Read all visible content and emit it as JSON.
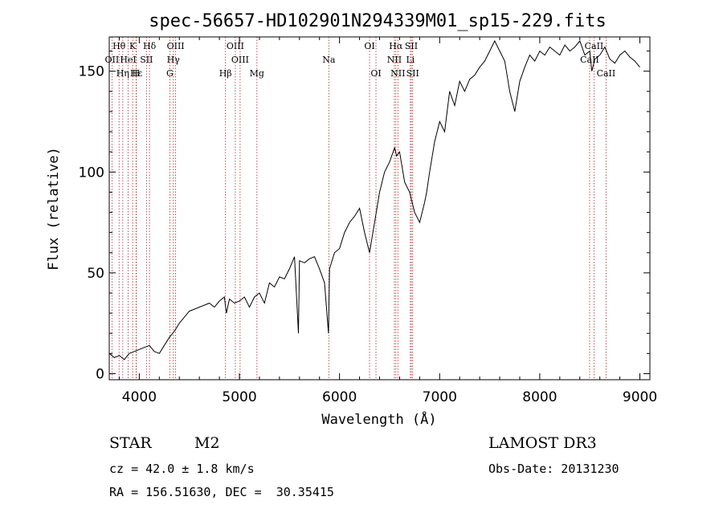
{
  "chart_data": {
    "type": "line",
    "title": "spec-56657-HD102901N294339M01_sp15-229.fits",
    "xlabel": "Wavelength (Å)",
    "ylabel": "Flux (relative)",
    "xlim": [
      3700,
      9100
    ],
    "ylim": [
      -3,
      167
    ],
    "xticks": [
      4000,
      5000,
      6000,
      7000,
      8000,
      9000
    ],
    "yticks": [
      0,
      50,
      100,
      150
    ],
    "grid": false,
    "series": [
      {
        "name": "spectrum",
        "x": [
          3700,
          3750,
          3800,
          3850,
          3900,
          3950,
          4000,
          4050,
          4100,
          4150,
          4200,
          4250,
          4300,
          4350,
          4400,
          4450,
          4500,
          4550,
          4600,
          4650,
          4700,
          4750,
          4800,
          4850,
          4870,
          4900,
          4950,
          5000,
          5050,
          5100,
          5150,
          5200,
          5250,
          5300,
          5350,
          5400,
          5450,
          5500,
          5550,
          5590,
          5600,
          5650,
          5700,
          5750,
          5800,
          5850,
          5890,
          5900,
          5950,
          6000,
          6050,
          6100,
          6150,
          6200,
          6250,
          6300,
          6350,
          6400,
          6450,
          6500,
          6550,
          6570,
          6600,
          6650,
          6700,
          6750,
          6800,
          6850,
          6870,
          6900,
          6950,
          7000,
          7050,
          7100,
          7150,
          7200,
          7250,
          7300,
          7350,
          7400,
          7450,
          7500,
          7550,
          7600,
          7650,
          7700,
          7750,
          7800,
          7850,
          7900,
          7950,
          8000,
          8050,
          8100,
          8150,
          8200,
          8250,
          8300,
          8350,
          8400,
          8450,
          8500,
          8520,
          8550,
          8600,
          8650,
          8700,
          8750,
          8800,
          8850,
          8900,
          8950,
          9000
        ],
        "y": [
          10,
          8,
          9,
          7,
          10,
          11,
          12,
          13,
          14,
          11,
          10,
          14,
          18,
          21,
          25,
          28,
          31,
          32,
          33,
          34,
          35,
          33,
          36,
          38,
          30,
          37,
          35,
          36,
          38,
          33,
          38,
          40,
          35,
          45,
          43,
          48,
          47,
          52,
          58,
          20,
          56,
          55,
          57,
          58,
          52,
          45,
          20,
          52,
          60,
          62,
          70,
          75,
          78,
          82,
          70,
          60,
          75,
          90,
          100,
          105,
          112,
          108,
          110,
          95,
          90,
          80,
          75,
          85,
          90,
          100,
          115,
          125,
          120,
          140,
          133,
          145,
          140,
          146,
          148,
          152,
          155,
          160,
          165,
          160,
          155,
          140,
          130,
          145,
          152,
          158,
          155,
          160,
          158,
          162,
          160,
          158,
          163,
          160,
          162,
          165,
          158,
          160,
          150,
          156,
          158,
          162,
          156,
          154,
          158,
          160,
          157,
          155,
          152
        ]
      }
    ],
    "spectral_lines": [
      {
        "name": "Hθ",
        "row": 1,
        "wl": 3798
      },
      {
        "name": "K",
        "row": 1,
        "wl": 3934
      },
      {
        "name": "Hδ",
        "row": 1,
        "wl": 4102
      },
      {
        "name": "OIII",
        "row": 1,
        "wl": 4363
      },
      {
        "name": "OIII",
        "row": 1,
        "wl": 4959
      },
      {
        "name": "OI",
        "row": 1,
        "wl": 6300
      },
      {
        "name": "Hα",
        "row": 1,
        "wl": 6563
      },
      {
        "name": "SII",
        "row": 1,
        "wl": 6717
      },
      {
        "name": "CaII",
        "row": 1,
        "wl": 8542
      },
      {
        "name": "OII",
        "row": 2,
        "wl": 3727
      },
      {
        "name": "HeI",
        "row": 2,
        "wl": 3889
      },
      {
        "name": "SII",
        "row": 2,
        "wl": 4072
      },
      {
        "name": "Hγ",
        "row": 2,
        "wl": 4340
      },
      {
        "name": "OIII",
        "row": 2,
        "wl": 5007
      },
      {
        "name": "Na",
        "row": 2,
        "wl": 5893
      },
      {
        "name": "NII",
        "row": 2,
        "wl": 6548
      },
      {
        "name": "Li",
        "row": 2,
        "wl": 6708
      },
      {
        "name": "CaII",
        "row": 2,
        "wl": 8498
      },
      {
        "name": "Hε",
        "row": 3,
        "wl": 3970
      },
      {
        "name": "Hη",
        "row": 3,
        "wl": 3835
      },
      {
        "name": "H",
        "row": 3,
        "wl": 3968
      },
      {
        "name": "G",
        "row": 3,
        "wl": 4305
      },
      {
        "name": "Hβ",
        "row": 3,
        "wl": 4861
      },
      {
        "name": "Mg",
        "row": 3,
        "wl": 5175
      },
      {
        "name": "OI",
        "row": 3,
        "wl": 6364
      },
      {
        "name": "NII",
        "row": 3,
        "wl": 6583
      },
      {
        "name": "SII",
        "row": 3,
        "wl": 6731
      },
      {
        "name": "CaII",
        "row": 3,
        "wl": 8662
      }
    ]
  },
  "info": {
    "class": "STAR",
    "subclass": "M2",
    "cz": "cz = 42.0 ± 1.8 km/s",
    "coords": "RA = 156.51630, DEC =  30.35415",
    "survey": "LAMOST DR3",
    "obs_date": "Obs-Date: 20131230"
  }
}
